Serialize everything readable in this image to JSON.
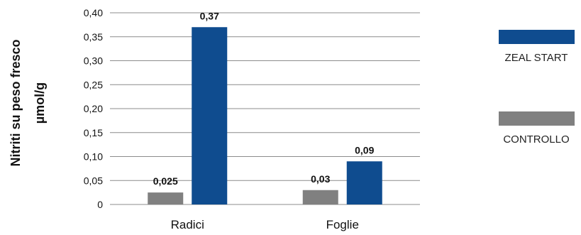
{
  "chart_data": {
    "type": "bar",
    "ylabel_lines": [
      "Nitriti su peso fresco",
      "µmol/g"
    ],
    "categories": [
      "Radici",
      "Foglie"
    ],
    "ylim": [
      0,
      0.4
    ],
    "yticks": [
      "0",
      "0,05",
      "0,10",
      "0,15",
      "0,20",
      "0,25",
      "0,30",
      "0,35",
      "0,40"
    ],
    "ytick_values": [
      0,
      0.05,
      0.1,
      0.15,
      0.2,
      0.25,
      0.3,
      0.35,
      0.4
    ],
    "grid": true,
    "legend_position": "right",
    "series": [
      {
        "name": "CONTROLLO",
        "color": "#808080",
        "values": [
          0.025,
          0.03
        ],
        "labels": [
          "0,025",
          "0,03"
        ]
      },
      {
        "name": "ZEAL START",
        "color": "#0f4c8f",
        "values": [
          0.37,
          0.09
        ],
        "labels": [
          "0,37",
          "0,09"
        ]
      }
    ]
  }
}
